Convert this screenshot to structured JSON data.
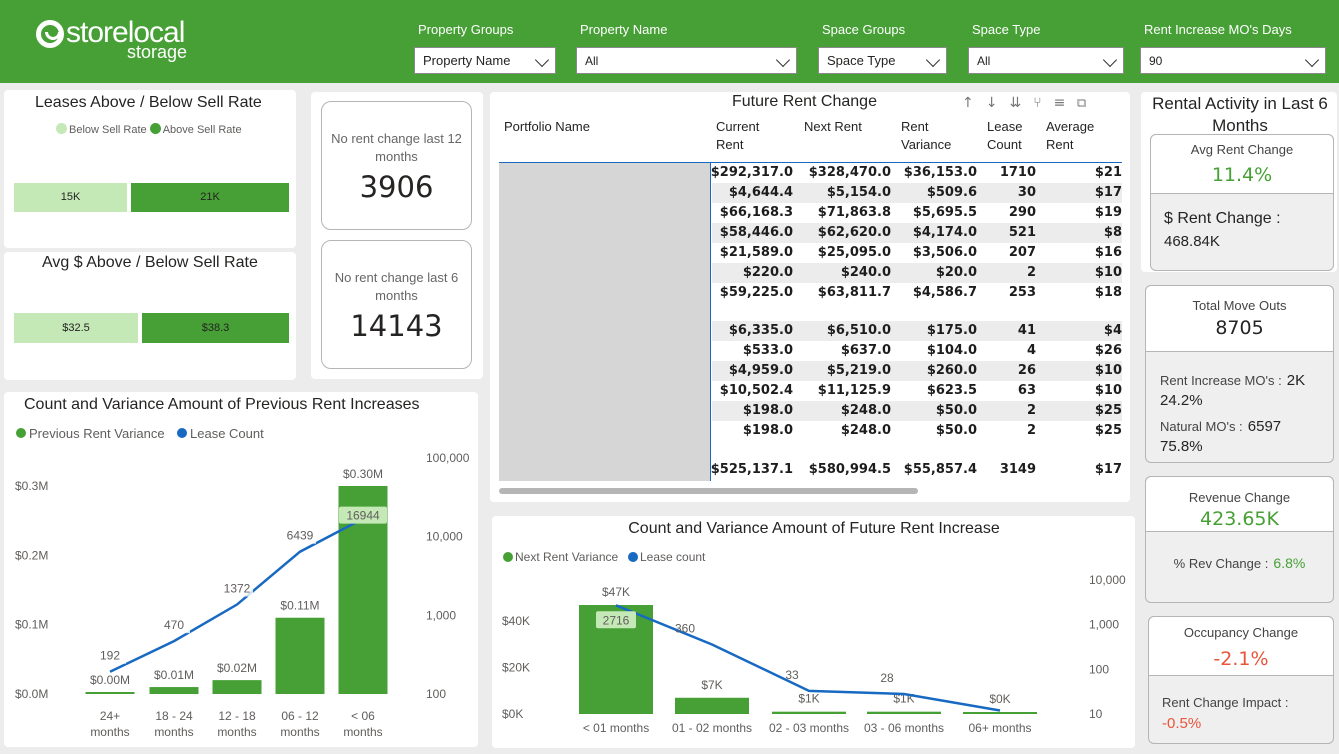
{
  "logo": {
    "brand": "storelocal",
    "sub": "storage"
  },
  "filters": [
    {
      "label": "Property Groups",
      "value": "Property Name"
    },
    {
      "label": "Property Name",
      "value": "All"
    },
    {
      "label": "Space Groups",
      "value": "Space Type"
    },
    {
      "label": "Space Type",
      "value": "All"
    },
    {
      "label": "Rent Increase MO's Days",
      "value": "90"
    }
  ],
  "leases_above_below": {
    "title": "Leases Above / Below Sell Rate",
    "legend": [
      "Below Sell Rate",
      "Above Sell Rate"
    ],
    "below_label": "15K",
    "above_label": "21K",
    "below_value": 15,
    "above_value": 21
  },
  "avg_above_below": {
    "title": "Avg $ Above / Below Sell Rate",
    "below_label": "$32.5",
    "above_label": "$38.3",
    "below_value": 32.5,
    "above_value": 38.3
  },
  "no_change_12": {
    "label": "No rent change last 12 months",
    "value": "3906"
  },
  "no_change_6": {
    "label": "No rent change last 6 months",
    "value": "14143"
  },
  "future_table": {
    "title": "Future Rent Change",
    "columns": [
      "Portfolio Name",
      "Current Rent",
      "Next Rent",
      "Rent Variance",
      "Lease Count",
      "Average Rent Increase"
    ],
    "rows": [
      [
        "$292,317.0",
        "$328,470.0",
        "$36,153.0",
        "1710",
        "$21"
      ],
      [
        "$4,644.4",
        "$5,154.0",
        "$509.6",
        "30",
        "$17"
      ],
      [
        "$66,168.3",
        "$71,863.8",
        "$5,695.5",
        "290",
        "$19"
      ],
      [
        "$58,446.0",
        "$62,620.0",
        "$4,174.0",
        "521",
        "$8"
      ],
      [
        "$21,589.0",
        "$25,095.0",
        "$3,506.0",
        "207",
        "$16"
      ],
      [
        "$220.0",
        "$240.0",
        "$20.0",
        "2",
        "$10"
      ],
      [
        "$59,225.0",
        "$63,811.7",
        "$4,586.7",
        "253",
        "$18"
      ],
      [
        "$6,335.0",
        "$6,510.0",
        "$175.0",
        "41",
        "$4"
      ],
      [
        "$533.0",
        "$637.0",
        "$104.0",
        "4",
        "$26"
      ],
      [
        "$4,959.0",
        "$5,219.0",
        "$260.0",
        "26",
        "$10"
      ],
      [
        "$10,502.4",
        "$11,125.9",
        "$623.5",
        "63",
        "$10"
      ],
      [
        "$198.0",
        "$248.0",
        "$50.0",
        "2",
        "$25"
      ],
      [
        "$198.0",
        "$248.0",
        "$50.0",
        "2",
        "$25"
      ]
    ],
    "total": [
      "$525,137.1",
      "$580,994.5",
      "$55,857.4",
      "3149",
      "$17"
    ]
  },
  "rental_activity": {
    "title": "Rental Activity in Last 6 Months",
    "avg_rent_change_label": "Avg Rent Change",
    "avg_rent_change_value": "11.4%",
    "rent_change_label": "$ Rent Change :",
    "rent_change_value": "468.84K",
    "move_outs_label": "Total Move Outs",
    "move_outs_value": "8705",
    "rent_increase_mo_label": "Rent Increase MO's :",
    "rent_increase_mo_value": "2K",
    "rent_increase_mo_pct": "24.2%",
    "natural_mo_label": "Natural MO's :",
    "natural_mo_value": "6597",
    "natural_mo_pct": "75.8%",
    "revenue_change_label": "Revenue Change",
    "revenue_change_value": "423.65K",
    "rev_change_pct_label": "% Rev Change :",
    "rev_change_pct_value": "6.8%",
    "occupancy_change_label": "Occupancy Change",
    "occupancy_change_value": "-2.1%",
    "rent_change_impact_label": "Rent Change Impact :",
    "rent_change_impact_value": "-0.5%"
  },
  "colors": {
    "green": "#46a035",
    "light_green": "#c5e8b7",
    "blue": "#1769c2",
    "orange_red": "#e8553a"
  },
  "chart_data": [
    {
      "type": "bar",
      "title": "Count and Variance Amount of Previous Rent Increases",
      "categories": [
        "24+ months",
        "18 - 24 months",
        "12 - 18 months",
        "06 - 12 months",
        "< 06 months"
      ],
      "series": [
        {
          "name": "Previous Rent Variance",
          "values": [
            0.0,
            0.01,
            0.02,
            0.11,
            0.3
          ],
          "labels": [
            "$0.00M",
            "$0.01M",
            "$0.02M",
            "$0.11M",
            "$0.30M"
          ],
          "axis": "left"
        },
        {
          "name": "Lease Count",
          "values": [
            192,
            470,
            1372,
            6439,
            16944
          ],
          "labels": [
            "192",
            "470",
            "1372",
            "6439",
            "16944"
          ],
          "axis": "right",
          "kind": "line"
        }
      ],
      "y_left_ticks": [
        "$0.0M",
        "$0.1M",
        "$0.2M",
        "$0.3M"
      ],
      "y_left_range": [
        0,
        0.3
      ],
      "y_right_ticks": [
        "100",
        "1,000",
        "10,000",
        "100,000"
      ],
      "y_right_scale": "log",
      "legend_position": "top-left"
    },
    {
      "type": "bar",
      "title": "Count and Variance Amount of Future Rent Increase",
      "categories": [
        "< 01 months",
        "01 - 02 months",
        "02 - 03 months",
        "03 - 06 months",
        "06+ months"
      ],
      "series": [
        {
          "name": "Next Rent Variance",
          "values": [
            47,
            7,
            1,
            1,
            0
          ],
          "labels": [
            "$47K",
            "$7K",
            "$1K",
            "$1K",
            "$0K"
          ],
          "axis": "left"
        },
        {
          "name": "Lease count",
          "values": [
            2716,
            360,
            33,
            28,
            12
          ],
          "labels": [
            "2716",
            "360",
            "33",
            "28",
            ""
          ],
          "axis": "right",
          "kind": "line"
        }
      ],
      "y_left_ticks": [
        "$0K",
        "$20K",
        "$40K"
      ],
      "y_left_range": [
        0,
        47
      ],
      "y_right_ticks": [
        "10",
        "100",
        "1,000",
        "10,000"
      ],
      "y_right_scale": "log",
      "legend_position": "top-left"
    }
  ]
}
